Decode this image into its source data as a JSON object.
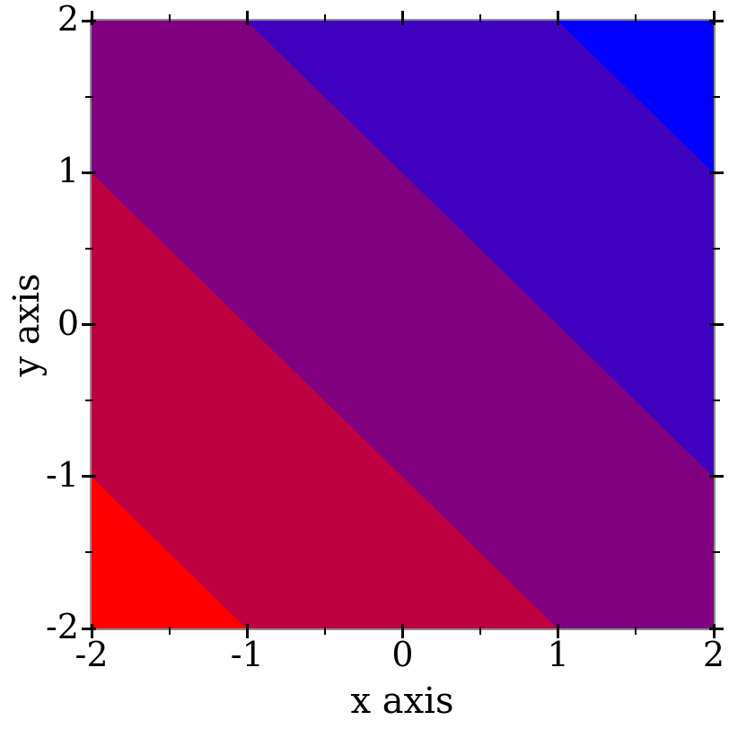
{
  "chart_data": {
    "type": "heatmap",
    "variant": "filled-contour-intervals",
    "title": "",
    "xlabel": "x axis",
    "ylabel": "y axis",
    "xlim": [
      -2,
      2
    ],
    "ylim": [
      -2,
      2
    ],
    "grid": false,
    "legend_position": "none",
    "x_ticks": {
      "major": [
        -2,
        -1,
        0,
        1,
        2
      ],
      "minor": [
        -1.5,
        -0.5,
        0.5,
        1.5
      ],
      "labels": [
        "-2",
        "-1",
        "0",
        "1",
        "2"
      ]
    },
    "y_ticks": {
      "major": [
        -2,
        -1,
        0,
        1,
        2
      ],
      "minor": [
        -1.5,
        -0.5,
        0.5,
        1.5
      ],
      "labels": [
        "-2",
        "-1",
        "0",
        "1",
        "2"
      ]
    },
    "contour_levels_x_plus_y": [
      -3,
      -1,
      1,
      3
    ],
    "bands": [
      {
        "value_range": [
          -4,
          -3
        ],
        "color": "#ff0000",
        "polygon": [
          [
            -2,
            -1
          ],
          [
            -2,
            -2
          ],
          [
            -1,
            -2
          ]
        ]
      },
      {
        "value_range": [
          -3,
          -1
        ],
        "color": "#bf0040",
        "polygon": [
          [
            -2,
            1
          ],
          [
            -2,
            -1
          ],
          [
            -1,
            -2
          ],
          [
            1,
            -2
          ]
        ]
      },
      {
        "value_range": [
          -1,
          1
        ],
        "color": "#800080",
        "polygon": [
          [
            -2,
            2
          ],
          [
            -1,
            2
          ],
          [
            2,
            -1
          ],
          [
            2,
            -2
          ],
          [
            1,
            -2
          ],
          [
            -2,
            1
          ]
        ]
      },
      {
        "value_range": [
          1,
          3
        ],
        "color": "#4000bf",
        "polygon": [
          [
            -1,
            2
          ],
          [
            1,
            2
          ],
          [
            2,
            1
          ],
          [
            2,
            -1
          ]
        ]
      },
      {
        "value_range": [
          3,
          4
        ],
        "color": "#0000ff",
        "polygon": [
          [
            1,
            2
          ],
          [
            2,
            2
          ],
          [
            2,
            1
          ]
        ]
      }
    ],
    "colors": {
      "plot_border": "#8f8f8f",
      "tick": "#000000",
      "text": "#000000",
      "background": "#ffffff"
    }
  }
}
